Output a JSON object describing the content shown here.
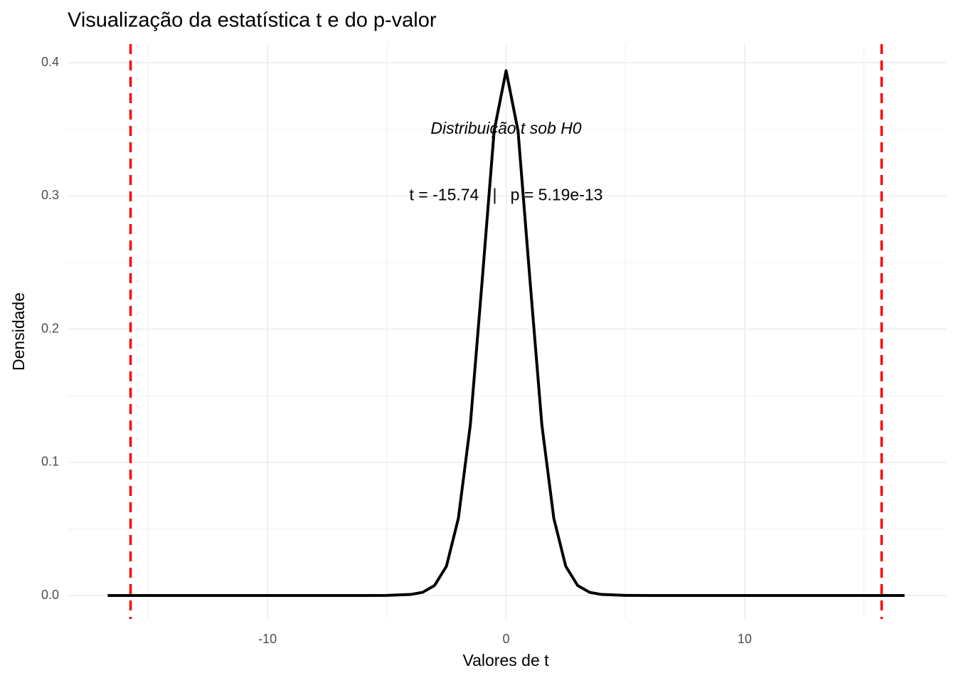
{
  "chart_data": {
    "type": "line",
    "title": "Visualização da estatística t e do p-valor",
    "x_label": "Valores de t",
    "y_label": "Densidade",
    "x": [
      -16.7,
      -10,
      -6,
      -5,
      -4,
      -3.5,
      -3,
      -2.5,
      -2,
      -1.5,
      -1,
      -0.5,
      0,
      0.5,
      1,
      1.5,
      2,
      2.5,
      3,
      3.5,
      4,
      5,
      6,
      10,
      16.7
    ],
    "series": [
      {
        "name": "Distribuição t",
        "color": "#000000",
        "values": [
          0,
          0,
          1e-05,
          0.0001,
          0.0008,
          0.0024,
          0.0075,
          0.022,
          0.058,
          0.128,
          0.237,
          0.349,
          0.394,
          0.349,
          0.237,
          0.128,
          0.058,
          0.022,
          0.0075,
          0.0024,
          0.0008,
          0.0001,
          1e-05,
          0,
          0
        ]
      }
    ],
    "vlines": {
      "values": [
        -15.74,
        15.74
      ],
      "color": "#ff0000"
    },
    "annotations": [
      {
        "text": "Distribuição t sob H0",
        "x": 0,
        "y": 0.35,
        "italic": true
      },
      {
        "text": "t = -15.74   |   p = 5.19e-13",
        "x": 0,
        "y": 0.3,
        "italic": false
      }
    ],
    "xlim": [
      -18.38,
      18.44
    ],
    "ylim": [
      -0.0176,
      0.414
    ],
    "xticks": [
      -10,
      0,
      10
    ],
    "yticks": [
      {
        "value": 0,
        "label": "0.0"
      },
      0.1,
      0.2,
      0.3,
      0.4
    ],
    "grid": true
  }
}
